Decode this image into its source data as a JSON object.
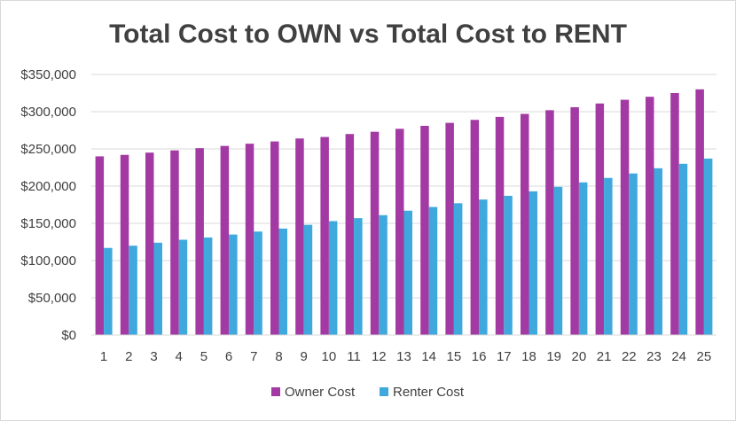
{
  "chart_data": {
    "type": "bar",
    "title": "Total Cost to OWN vs Total Cost to RENT",
    "xlabel": "",
    "ylabel": "",
    "categories": [
      "1",
      "2",
      "3",
      "4",
      "5",
      "6",
      "7",
      "8",
      "9",
      "10",
      "11",
      "12",
      "13",
      "14",
      "15",
      "16",
      "17",
      "18",
      "19",
      "20",
      "21",
      "22",
      "23",
      "24",
      "25"
    ],
    "series": [
      {
        "name": "Owner Cost",
        "color": "#A33AA3",
        "values": [
          240000,
          242000,
          245000,
          248000,
          251000,
          254000,
          257000,
          260000,
          264000,
          266000,
          270000,
          273000,
          277000,
          281000,
          285000,
          289000,
          293000,
          297000,
          302000,
          306000,
          311000,
          316000,
          320000,
          325000,
          330000
        ]
      },
      {
        "name": "Renter Cost",
        "color": "#3FA8DD",
        "values": [
          117000,
          120000,
          124000,
          128000,
          131000,
          135000,
          139000,
          143000,
          148000,
          153000,
          157000,
          161000,
          167000,
          172000,
          177000,
          182000,
          187000,
          193000,
          199000,
          205000,
          211000,
          217000,
          224000,
          230000,
          237000
        ]
      }
    ],
    "ylim": [
      0,
      350000
    ],
    "ytick_values": [
      0,
      50000,
      100000,
      150000,
      200000,
      250000,
      300000,
      350000
    ],
    "ytick_labels": [
      "$0",
      "$50,000",
      "$100,000",
      "$150,000",
      "$200,000",
      "$250,000",
      "$300,000",
      "$350,000"
    ],
    "gridlines": true,
    "legend_position": "bottom"
  }
}
